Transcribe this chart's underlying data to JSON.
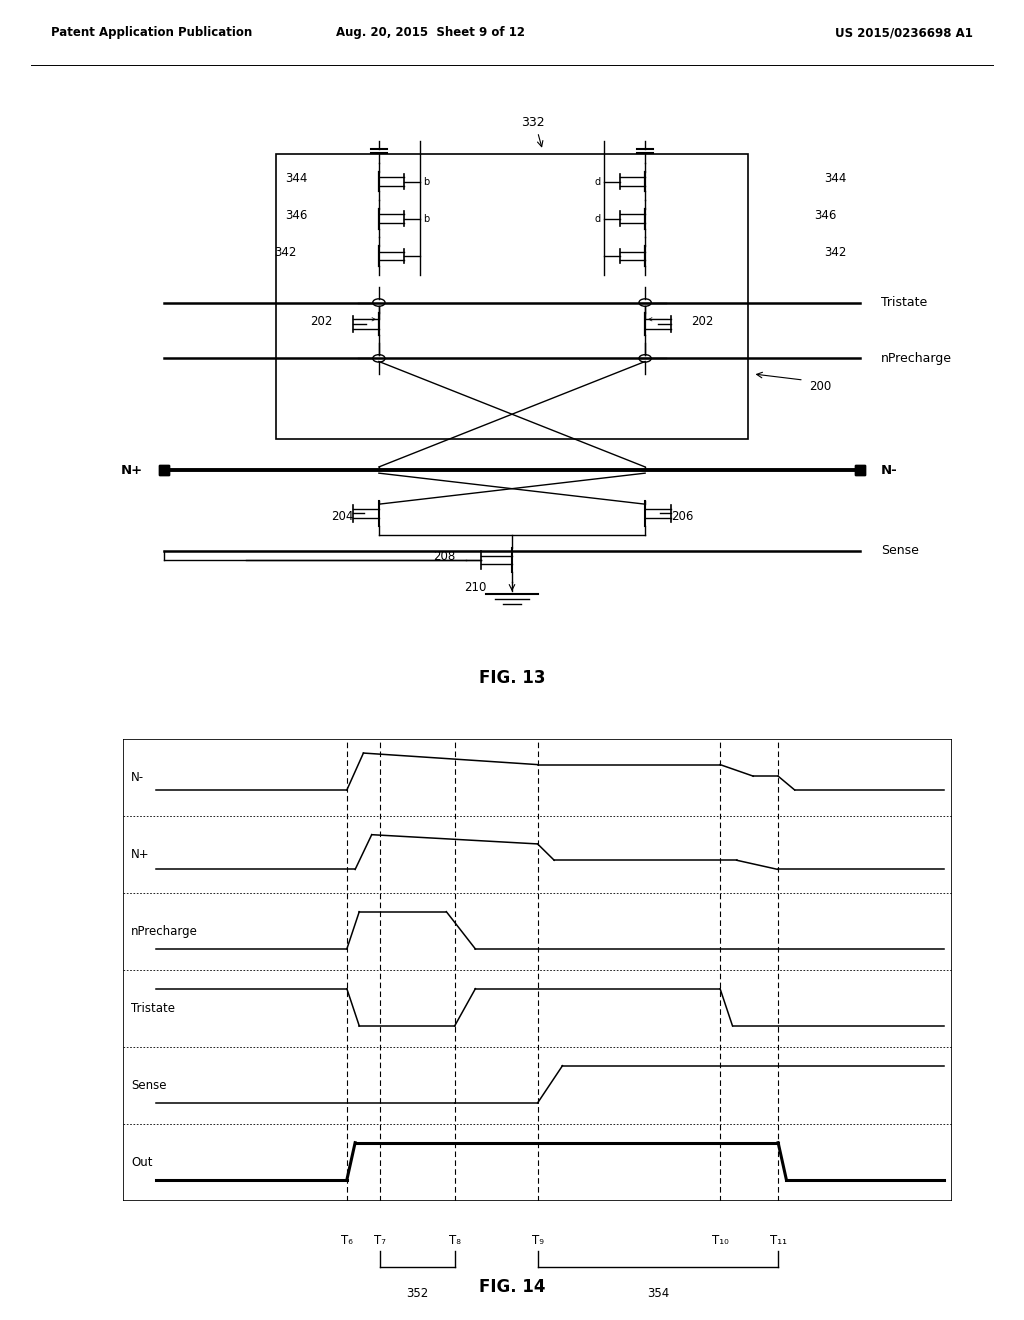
{
  "header_left": "Patent Application Publication",
  "header_center": "Aug. 20, 2015  Sheet 9 of 12",
  "header_right": "US 2015/0236698 A1",
  "fig13_label": "FIG. 13",
  "fig14_label": "FIG. 14",
  "timing_signals": [
    "N-",
    "N+",
    "nPrecharge",
    "Tristate",
    "Sense",
    "Out"
  ],
  "time_labels": [
    "T₆",
    "T₇",
    "T₈",
    "T₉",
    "T₁₀",
    "T₁₁"
  ],
  "bracket_labels": [
    "352",
    "354"
  ],
  "background_color": "#ffffff",
  "line_color": "#000000",
  "t6": 0.27,
  "t7": 0.31,
  "t8": 0.4,
  "t9": 0.5,
  "t10": 0.72,
  "t11": 0.79
}
